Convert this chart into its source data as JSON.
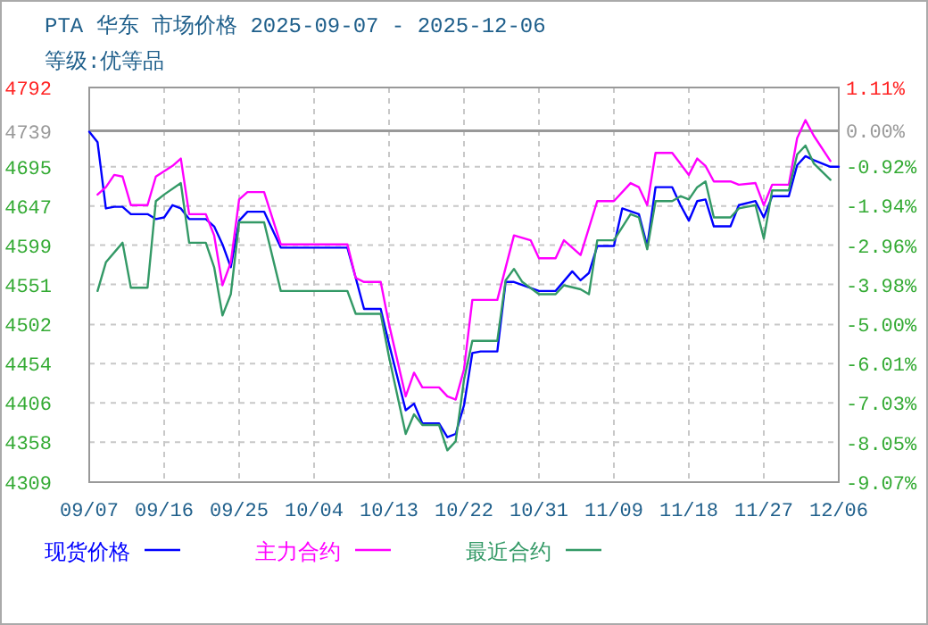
{
  "chart_data": {
    "type": "line",
    "title": "PTA 华东 市场价格 2025-09-07 - 2025-12-06",
    "subtitle": "等级:优等品",
    "xlim": [
      "2025-09-07",
      "2025-12-06"
    ],
    "xticks": [
      {
        "value": "2025-09-07",
        "label": "09/07"
      },
      {
        "value": "2025-09-16",
        "label": "09/16"
      },
      {
        "value": "2025-09-25",
        "label": "09/25"
      },
      {
        "value": "2025-10-04",
        "label": "10/04"
      },
      {
        "value": "2025-10-13",
        "label": "10/13"
      },
      {
        "value": "2025-10-22",
        "label": "10/22"
      },
      {
        "value": "2025-10-31",
        "label": "10/31"
      },
      {
        "value": "2025-11-09",
        "label": "11/09"
      },
      {
        "value": "2025-11-18",
        "label": "11/18"
      },
      {
        "value": "2025-11-27",
        "label": "11/27"
      },
      {
        "value": "2025-12-06",
        "label": "12/06"
      }
    ],
    "ylim": [
      4309,
      4792
    ],
    "yticks": [
      4792,
      4739,
      4695,
      4647,
      4599,
      4551,
      4502,
      4454,
      4406,
      4358,
      4309
    ],
    "y2lim": [
      -9.07,
      1.11
    ],
    "y2ticks": [
      {
        "value": 1.11,
        "label": "1.11%"
      },
      {
        "value": 0,
        "label": "0.00%"
      },
      {
        "value": -0.92,
        "label": "-0.92%"
      },
      {
        "value": -1.94,
        "label": "-1.94%"
      },
      {
        "value": -2.96,
        "label": "-2.96%"
      },
      {
        "value": -3.98,
        "label": "-3.98%"
      },
      {
        "value": -5.0,
        "label": "-5.00%"
      },
      {
        "value": -6.01,
        "label": "-6.01%"
      },
      {
        "value": -7.03,
        "label": "-7.03%"
      },
      {
        "value": -8.05,
        "label": "-8.05%"
      },
      {
        "value": -9.07,
        "label": "-9.07%"
      }
    ],
    "ref_lines": [
      {
        "axis": "y",
        "value": 4739,
        "color": "#999999"
      }
    ],
    "grid": true,
    "legend": "bottom",
    "line_style": "solid",
    "marker": "none",
    "series": [
      {
        "name": "现货价格",
        "color": "#0000ff",
        "x": [
          "2025-09-07",
          "2025-09-08",
          "2025-09-09",
          "2025-09-10",
          "2025-09-11",
          "2025-09-12",
          "2025-09-14",
          "2025-09-15",
          "2025-09-16",
          "2025-09-17",
          "2025-09-18",
          "2025-09-19",
          "2025-09-21",
          "2025-09-22",
          "2025-09-23",
          "2025-09-24",
          "2025-09-25",
          "2025-09-26",
          "2025-09-28",
          "2025-09-30",
          "2025-10-08",
          "2025-10-09",
          "2025-10-10",
          "2025-10-12",
          "2025-10-13",
          "2025-10-15",
          "2025-10-16",
          "2025-10-17",
          "2025-10-19",
          "2025-10-20",
          "2025-10-21",
          "2025-10-22",
          "2025-10-23",
          "2025-10-24",
          "2025-10-26",
          "2025-10-27",
          "2025-10-28",
          "2025-10-31",
          "2025-11-02",
          "2025-11-04",
          "2025-11-05",
          "2025-11-06",
          "2025-11-07",
          "2025-11-09",
          "2025-11-10",
          "2025-11-12",
          "2025-11-13",
          "2025-11-14",
          "2025-11-16",
          "2025-11-17",
          "2025-11-18",
          "2025-11-19",
          "2025-11-20",
          "2025-11-21",
          "2025-11-23",
          "2025-11-24",
          "2025-11-26",
          "2025-11-27",
          "2025-11-28",
          "2025-11-30",
          "2025-12-01",
          "2025-12-02",
          "2025-12-03",
          "2025-12-05",
          "2025-12-06"
        ],
        "values": [
          4738,
          4725,
          4644,
          4646,
          4646,
          4637,
          4637,
          4631,
          4633,
          4648,
          4644,
          4631,
          4631,
          4622,
          4600,
          4572,
          4629,
          4640,
          4640,
          4596,
          4596,
          4559,
          4521,
          4521,
          4478,
          4397,
          4405,
          4381,
          4381,
          4364,
          4368,
          4403,
          4467,
          4469,
          4469,
          4554,
          4554,
          4543,
          4543,
          4567,
          4556,
          4565,
          4598,
          4598,
          4644,
          4637,
          4598,
          4670,
          4670,
          4648,
          4629,
          4653,
          4655,
          4622,
          4622,
          4648,
          4653,
          4633,
          4659,
          4659,
          4697,
          4708,
          4703,
          4695,
          4695
        ]
      },
      {
        "name": "主力合约",
        "color": "#ff00ff",
        "x": [
          "2025-09-08",
          "2025-09-09",
          "2025-09-10",
          "2025-09-11",
          "2025-09-12",
          "2025-09-14",
          "2025-09-15",
          "2025-09-17",
          "2025-09-18",
          "2025-09-19",
          "2025-09-21",
          "2025-09-22",
          "2025-09-23",
          "2025-09-24",
          "2025-09-25",
          "2025-09-26",
          "2025-09-28",
          "2025-09-30",
          "2025-10-08",
          "2025-10-09",
          "2025-10-10",
          "2025-10-12",
          "2025-10-13",
          "2025-10-15",
          "2025-10-16",
          "2025-10-17",
          "2025-10-19",
          "2025-10-20",
          "2025-10-21",
          "2025-10-22",
          "2025-10-23",
          "2025-10-26",
          "2025-10-28",
          "2025-10-30",
          "2025-10-31",
          "2025-11-02",
          "2025-11-03",
          "2025-11-05",
          "2025-11-07",
          "2025-11-09",
          "2025-11-11",
          "2025-11-12",
          "2025-11-13",
          "2025-11-14",
          "2025-11-16",
          "2025-11-18",
          "2025-11-19",
          "2025-11-20",
          "2025-11-21",
          "2025-11-23",
          "2025-11-24",
          "2025-11-26",
          "2025-11-27",
          "2025-11-28",
          "2025-11-30",
          "2025-12-01",
          "2025-12-02",
          "2025-12-03",
          "2025-12-05"
        ],
        "values": [
          4661,
          4670,
          4685,
          4683,
          4648,
          4648,
          4683,
          4696,
          4705,
          4637,
          4637,
          4611,
          4550,
          4578,
          4655,
          4664,
          4664,
          4600,
          4600,
          4559,
          4554,
          4554,
          4502,
          4414,
          4443,
          4425,
          4425,
          4414,
          4410,
          4447,
          4532,
          4532,
          4611,
          4605,
          4583,
          4583,
          4605,
          4587,
          4653,
          4653,
          4675,
          4670,
          4648,
          4712,
          4712,
          4685,
          4705,
          4696,
          4677,
          4677,
          4673,
          4675,
          4648,
          4673,
          4673,
          4730,
          4752,
          4733,
          4702
        ]
      },
      {
        "name": "最近合约",
        "color": "#339966",
        "x": [
          "2025-09-08",
          "2025-09-09",
          "2025-09-11",
          "2025-09-12",
          "2025-09-14",
          "2025-09-15",
          "2025-09-16",
          "2025-09-18",
          "2025-09-19",
          "2025-09-21",
          "2025-09-22",
          "2025-09-23",
          "2025-09-24",
          "2025-09-25",
          "2025-09-28",
          "2025-09-30",
          "2025-10-08",
          "2025-10-09",
          "2025-10-12",
          "2025-10-13",
          "2025-10-15",
          "2025-10-16",
          "2025-10-17",
          "2025-10-19",
          "2025-10-20",
          "2025-10-21",
          "2025-10-22",
          "2025-10-23",
          "2025-10-26",
          "2025-10-27",
          "2025-10-28",
          "2025-10-29",
          "2025-10-31",
          "2025-11-02",
          "2025-11-03",
          "2025-11-05",
          "2025-11-06",
          "2025-11-07",
          "2025-11-09",
          "2025-11-11",
          "2025-11-12",
          "2025-11-13",
          "2025-11-14",
          "2025-11-16",
          "2025-11-17",
          "2025-11-18",
          "2025-11-19",
          "2025-11-20",
          "2025-11-21",
          "2025-11-23",
          "2025-11-24",
          "2025-11-26",
          "2025-11-27",
          "2025-11-28",
          "2025-11-30",
          "2025-12-01",
          "2025-12-02",
          "2025-12-03",
          "2025-12-05"
        ],
        "values": [
          4543,
          4578,
          4602,
          4547,
          4547,
          4653,
          4661,
          4675,
          4602,
          4602,
          4572,
          4513,
          4539,
          4627,
          4627,
          4543,
          4543,
          4515,
          4515,
          4462,
          4368,
          4392,
          4379,
          4379,
          4348,
          4359,
          4434,
          4482,
          4482,
          4556,
          4570,
          4554,
          4539,
          4539,
          4550,
          4545,
          4539,
          4605,
          4605,
          4637,
          4633,
          4594,
          4653,
          4653,
          4659,
          4655,
          4670,
          4677,
          4633,
          4633,
          4644,
          4648,
          4607,
          4666,
          4666,
          4710,
          4721,
          4699,
          4679
        ]
      }
    ]
  }
}
